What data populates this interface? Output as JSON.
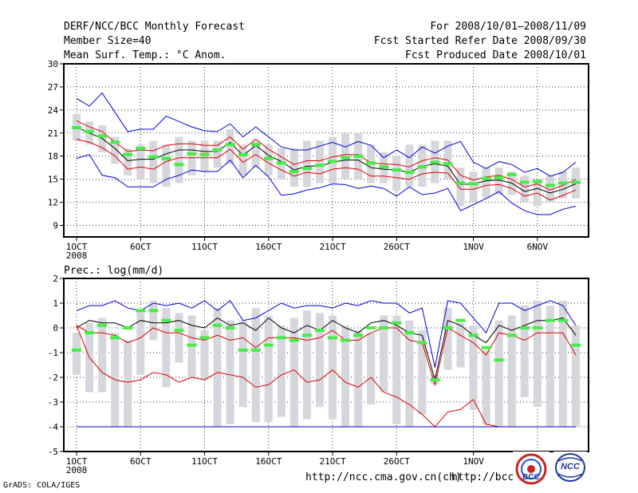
{
  "header": {
    "title": "DERF/NCC/BCC Monthly Forecast",
    "member_size": "Member Size=40",
    "variable": "Mean Surf. Temp.: °C Anom.",
    "period": "For 2008/10/01—2008/11/09",
    "started": "Fcst Started Refer Date 2008/09/30",
    "produced": "Fcst Produced Date 2008/10/01"
  },
  "footer": {
    "grads_credit": "GrADS: COLA/IGES",
    "url1": "http://ncc.cma.gov.cn(ch)",
    "url2": "http://bcc."
  },
  "logos": {
    "bcc_text": "BCC",
    "ncc_text": "NCC"
  },
  "colors": {
    "ensemble_box": "#d5d7dc",
    "envelope": "#0000dd",
    "spread": "#dd0000",
    "mean": "#000000",
    "observed": "#44ee44"
  },
  "chart_data": [
    {
      "type": "line",
      "title": "Mean Surf. Temp.: °C Anom.",
      "xlabel": "",
      "ylabel": "",
      "ylim": [
        7.5,
        30
      ],
      "yticks": [
        9,
        12,
        15,
        18,
        21,
        24,
        27,
        30
      ],
      "x": [
        1,
        2,
        3,
        4,
        5,
        6,
        7,
        8,
        9,
        10,
        11,
        12,
        13,
        14,
        15,
        16,
        17,
        18,
        19,
        20,
        21,
        22,
        23,
        24,
        25,
        26,
        27,
        28,
        29,
        30,
        31,
        32,
        33,
        34,
        35,
        36,
        37,
        38,
        39,
        40
      ],
      "xtick_positions": [
        1,
        6,
        11,
        16,
        21,
        26,
        32,
        37
      ],
      "xtick_labels": [
        "1OCT",
        "6OCT",
        "11OCT",
        "16OCT",
        "21OCT",
        "26OCT",
        "1NOV",
        "6NOV"
      ],
      "xtick_year": "2008",
      "box_low": [
        20,
        19.5,
        18.5,
        17,
        15.5,
        15,
        14.5,
        14,
        14.5,
        15.5,
        16,
        16.5,
        17,
        15.5,
        16.5,
        15.5,
        15,
        14,
        14,
        14.5,
        14.5,
        15,
        15,
        14.5,
        14.5,
        13.5,
        14,
        14,
        14.5,
        15,
        11.5,
        12,
        12.5,
        13,
        13,
        12,
        11.5,
        12,
        12.5,
        12.5
      ],
      "box_high": [
        23.5,
        22.5,
        22,
        20.5,
        19,
        19.5,
        20,
        19.5,
        20.5,
        20,
        20,
        20,
        21.5,
        19.5,
        20,
        19.5,
        19,
        19,
        20,
        20,
        20.5,
        21,
        21,
        19.5,
        18.5,
        18,
        19.5,
        19.5,
        20,
        20,
        16.5,
        16,
        16.5,
        16.5,
        16,
        15.5,
        15,
        15.5,
        16,
        16.5
      ],
      "series": [
        {
          "name": "max",
          "role": "envelope",
          "values": [
            25.5,
            24.5,
            26.2,
            23.7,
            21.2,
            21.5,
            21.5,
            23.2,
            22.5,
            21.8,
            21.3,
            21.2,
            22.2,
            20.5,
            21.8,
            20.5,
            19.2,
            18.8,
            18.8,
            19.3,
            19.8,
            19.2,
            19.9,
            19.4,
            17.8,
            18.8,
            17.8,
            19.2,
            18.4,
            19.3,
            19.9,
            17.2,
            16.4,
            17.3,
            16.9,
            15.9,
            16.4,
            15.4,
            15.9,
            17.2
          ]
        },
        {
          "name": "upper",
          "role": "spread",
          "values": [
            22.6,
            21.8,
            21.2,
            19.8,
            18.6,
            18.8,
            18.7,
            19.4,
            19.6,
            19.6,
            19.4,
            19.4,
            20.5,
            18.9,
            20.2,
            18.9,
            17.9,
            16.9,
            17.4,
            17.4,
            17.9,
            18.2,
            18.2,
            17.1,
            17.0,
            16.9,
            16.6,
            17.4,
            17.8,
            17.5,
            15.5,
            14.9,
            15.3,
            15.5,
            15.0,
            14.0,
            14.4,
            13.6,
            14.2,
            15.0
          ]
        },
        {
          "name": "mean",
          "role": "mean",
          "values": [
            21.8,
            21.0,
            20.3,
            19.0,
            17.4,
            17.6,
            17.6,
            18.3,
            18.8,
            18.8,
            18.6,
            18.6,
            19.8,
            18.1,
            19.4,
            18.1,
            17.3,
            16.2,
            16.7,
            16.7,
            17.2,
            17.5,
            17.5,
            16.5,
            16.3,
            16.2,
            15.9,
            16.7,
            17.0,
            16.7,
            14.3,
            14.4,
            14.8,
            14.9,
            14.5,
            13.4,
            13.8,
            13.2,
            13.7,
            14.4
          ]
        },
        {
          "name": "lower",
          "role": "spread",
          "values": [
            20.2,
            19.8,
            19.1,
            18.0,
            16.3,
            16.6,
            16.3,
            17.3,
            17.8,
            17.8,
            17.8,
            17.8,
            18.9,
            17.2,
            18.2,
            17.1,
            16.2,
            15.4,
            15.9,
            15.7,
            16.3,
            16.5,
            16.3,
            15.4,
            15.4,
            15.2,
            15.0,
            15.7,
            15.9,
            15.8,
            13.7,
            13.7,
            14.2,
            14.3,
            13.8,
            12.8,
            13.2,
            12.3,
            12.9,
            13.6
          ]
        },
        {
          "name": "min",
          "role": "envelope",
          "values": [
            17.7,
            18.2,
            15.5,
            15.2,
            14.0,
            14.0,
            14.0,
            15.0,
            15.5,
            16.2,
            16.0,
            16.0,
            17.5,
            15.2,
            16.8,
            15.3,
            12.9,
            13.1,
            13.6,
            13.9,
            14.4,
            14.3,
            13.8,
            14.1,
            13.8,
            12.8,
            14.0,
            13.0,
            13.2,
            13.8,
            10.9,
            11.7,
            12.5,
            13.4,
            11.9,
            10.9,
            10.4,
            10.4,
            11.1,
            11.5
          ]
        },
        {
          "name": "observed",
          "role": "observed",
          "values": [
            21.7,
            21.2,
            20.6,
            19.8,
            18.2,
            19,
            17.9,
            17.7,
            16.9,
            18.3,
            18.2,
            18.8,
            19.5,
            18.2,
            19.5,
            17.7,
            17.1,
            16,
            16.4,
            16.8,
            17.3,
            17.8,
            18,
            17.1,
            16.6,
            16.2,
            15.9,
            16.6,
            17.2,
            17,
            14.5,
            14.4,
            15.1,
            15.2,
            15.6,
            14.6,
            14.7,
            14.2,
            14.5,
            14.6
          ]
        }
      ]
    },
    {
      "type": "line",
      "title": "Prec.: log(mm/d)",
      "xlabel": "",
      "ylabel": "",
      "ylim": [
        -5,
        2
      ],
      "yticks": [
        -5,
        -4,
        -3,
        -2,
        -1,
        0,
        1,
        2
      ],
      "x": [
        1,
        2,
        3,
        4,
        5,
        6,
        7,
        8,
        9,
        10,
        11,
        12,
        13,
        14,
        15,
        16,
        17,
        18,
        19,
        20,
        21,
        22,
        23,
        24,
        25,
        26,
        27,
        28,
        29,
        30,
        31,
        32,
        33,
        34,
        35,
        36,
        37,
        38,
        39,
        40
      ],
      "xtick_positions": [
        1,
        6,
        11,
        16,
        21,
        26,
        32,
        37
      ],
      "xtick_labels": [
        "1OCT",
        "6OCT",
        "11OCT",
        "16OCT",
        "21OCT",
        "26OCT",
        "1NOV",
        "6NOV"
      ],
      "xtick_year": "2008",
      "box_low": [
        -1.9,
        -2.6,
        -2.6,
        -4,
        -4,
        -1.9,
        -0.5,
        -2.4,
        -1.4,
        -2,
        -2.1,
        -4,
        -3.9,
        -3.2,
        -3.8,
        -3.8,
        -3.6,
        -4,
        -3.7,
        -3.2,
        -3.7,
        -4,
        -4,
        -3.1,
        -2.6,
        -3.9,
        -4,
        -3.5,
        -2.3,
        -1.7,
        -1.6,
        -3.3,
        -3.9,
        -4,
        -4,
        -2.8,
        -3.2,
        -4,
        -4,
        -4
      ],
      "box_high": [
        -0.2,
        0.2,
        0.4,
        -0.2,
        -0.5,
        0.7,
        1.1,
        0.8,
        0.6,
        0.5,
        -0.1,
        0.8,
        0.3,
        0.3,
        0.8,
        0.5,
        0.1,
        0.4,
        0.7,
        0.6,
        0.5,
        0.1,
        -0.1,
        -0.2,
        0.5,
        0.5,
        0.3,
        -0.1,
        -1.9,
        0.8,
        0.2,
        0.1,
        -0.9,
        0.3,
        0.5,
        0.9,
        1.1,
        0.9,
        1.1,
        0.1
      ],
      "series": [
        {
          "name": "max",
          "role": "envelope",
          "values": [
            0.7,
            0.9,
            0.9,
            1.1,
            0.8,
            0.7,
            1.0,
            0.9,
            1.0,
            0.8,
            1.1,
            0.7,
            1.1,
            0.3,
            0.4,
            0.7,
            1.0,
            0.8,
            0.9,
            0.9,
            0.8,
            1.0,
            0.9,
            1.1,
            1.0,
            1.0,
            0.6,
            0.8,
            -1.6,
            1.1,
            1.0,
            0.4,
            -0.2,
            1.0,
            1.0,
            0.7,
            0.9,
            1.1,
            0.9,
            0.1
          ]
        },
        {
          "name": "mean",
          "role": "mean",
          "values": [
            0.0,
            0.3,
            0.2,
            0.2,
            0.0,
            0.3,
            0.2,
            0.2,
            0.3,
            0.1,
            0.0,
            0.4,
            0.1,
            0.2,
            -0.1,
            0.4,
            0.0,
            -0.2,
            0.1,
            -0.1,
            0.3,
            0.0,
            -0.2,
            0.2,
            0.3,
            0.1,
            -0.2,
            -0.3,
            -2.1,
            0.3,
            0.1,
            -0.3,
            -0.6,
            0.1,
            -0.1,
            0.1,
            0.3,
            0.3,
            0.4,
            -0.3
          ]
        },
        {
          "name": "upper",
          "role": "spread",
          "values": [
            0.1,
            -0.2,
            -0.2,
            -0.3,
            -0.6,
            -0.4,
            0.0,
            -0.2,
            -0.2,
            -0.4,
            -0.5,
            -0.3,
            -0.5,
            -0.4,
            -0.8,
            -0.4,
            -0.4,
            -0.4,
            -0.5,
            -0.4,
            -0.1,
            -0.5,
            -0.5,
            -0.2,
            0.0,
            0.0,
            -0.5,
            -0.6,
            -2.3,
            0.0,
            -0.3,
            -0.6,
            -1.1,
            -0.2,
            -0.3,
            -0.5,
            -0.2,
            -0.2,
            -0.2,
            -1.1
          ]
        },
        {
          "name": "lower",
          "role": "spread",
          "values": [
            0.1,
            -1.2,
            -1.8,
            -2.1,
            -2.2,
            -2.1,
            -1.8,
            -1.9,
            -2.2,
            -2.0,
            -2.1,
            -1.8,
            -1.9,
            -2.0,
            -2.4,
            -2.3,
            -1.9,
            -1.7,
            -2.2,
            -2.1,
            -1.7,
            -2.2,
            -2.4,
            -2.0,
            -2.6,
            -2.8,
            -3.1,
            -3.5,
            -4.0,
            -3.4,
            -3.3,
            -2.9,
            -3.9,
            -4.0,
            -4.0,
            -4.0,
            -4.0,
            -4.0,
            -4.0,
            -4.0
          ]
        },
        {
          "name": "min",
          "role": "envelope",
          "values": [
            -4.0,
            -4.0,
            -4.0,
            -4.0,
            -4.0,
            -4.0,
            -4.0,
            -4.0,
            -4.0,
            -4.0,
            -4.0,
            -4.0,
            -4.0,
            -4.0,
            -4.0,
            -4.0,
            -4.0,
            -4.0,
            -4.0,
            -4.0,
            -4.0,
            -4.0,
            -4.0,
            -4.0,
            -4.0,
            -4.0,
            -4.0,
            -4.0,
            -4.0,
            -4.0,
            -4.0,
            -4.0,
            -4.0,
            -4.0,
            -4.0,
            -4.0,
            -4.0,
            -4.0,
            -4.0,
            -4.0
          ]
        },
        {
          "name": "observed",
          "role": "observed",
          "values": [
            -0.9,
            -0.2,
            0.1,
            -0.4,
            0.0,
            0.7,
            0.7,
            0.3,
            -0.1,
            -0.7,
            -0.4,
            0.1,
            0.0,
            -0.9,
            -0.9,
            -0.7,
            -0.4,
            -0.5,
            -0.3,
            -0.1,
            -0.4,
            -0.5,
            -0.3,
            0.0,
            0.0,
            0.2,
            -0.2,
            -0.6,
            -2.1,
            0.0,
            0.3,
            -0.3,
            -0.8,
            -1.3,
            -0.3,
            0.0,
            0.0,
            0.3,
            0.3,
            -0.7
          ]
        }
      ]
    }
  ]
}
